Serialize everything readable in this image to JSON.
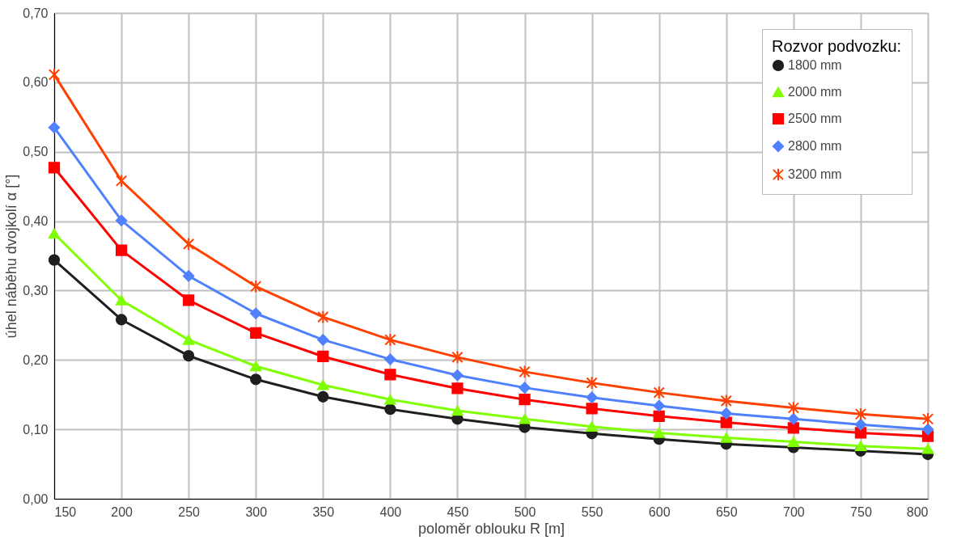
{
  "chart_data": {
    "type": "line",
    "xlabel": "poloměr oblouku R [m]",
    "ylabel": "úhel náběhu dvojkolí α [°]",
    "legend_title": "Rozvor podvozku:",
    "legend": "top right",
    "grid": true,
    "line_style": "solid",
    "x": [
      150,
      200,
      250,
      300,
      350,
      400,
      450,
      500,
      550,
      600,
      650,
      700,
      750,
      800
    ],
    "xlim": [
      150,
      800
    ],
    "xticks": [
      150,
      200,
      250,
      300,
      350,
      400,
      450,
      500,
      550,
      600,
      650,
      700,
      750,
      800
    ],
    "ylim": [
      0,
      0.7
    ],
    "yticks": [
      {
        "value": 0,
        "label": "0,00"
      },
      {
        "value": 0.1,
        "label": "0,10"
      },
      {
        "value": 0.2,
        "label": "0,20"
      },
      {
        "value": 0.3,
        "label": "0,30"
      },
      {
        "value": 0.4,
        "label": "0,40"
      },
      {
        "value": 0.5,
        "label": "0,50"
      },
      {
        "value": 0.6,
        "label": "0,60"
      },
      {
        "value": 0.7,
        "label": "0,70"
      }
    ],
    "series": [
      {
        "name": "1800 mm",
        "color": "#1f1f1f",
        "marker": "circle",
        "values": [
          0.344,
          0.258,
          0.206,
          0.172,
          0.147,
          0.129,
          0.115,
          0.103,
          0.094,
          0.086,
          0.079,
          0.074,
          0.069,
          0.064
        ]
      },
      {
        "name": "2000 mm",
        "color": "#80ff00",
        "marker": "triangle",
        "values": [
          0.382,
          0.286,
          0.229,
          0.191,
          0.164,
          0.143,
          0.127,
          0.115,
          0.104,
          0.095,
          0.088,
          0.082,
          0.076,
          0.072
        ]
      },
      {
        "name": "2500 mm",
        "color": "#ff0000",
        "marker": "square",
        "values": [
          0.477,
          0.358,
          0.286,
          0.239,
          0.205,
          0.179,
          0.159,
          0.143,
          0.13,
          0.119,
          0.11,
          0.102,
          0.095,
          0.09
        ]
      },
      {
        "name": "2800 mm",
        "color": "#4f81ff",
        "marker": "diamond",
        "values": [
          0.535,
          0.401,
          0.321,
          0.267,
          0.229,
          0.201,
          0.178,
          0.16,
          0.146,
          0.134,
          0.123,
          0.115,
          0.107,
          0.1
        ]
      },
      {
        "name": "3200 mm",
        "color": "#ff4000",
        "marker": "cross",
        "values": [
          0.611,
          0.458,
          0.367,
          0.306,
          0.262,
          0.229,
          0.204,
          0.183,
          0.167,
          0.153,
          0.141,
          0.131,
          0.122,
          0.115
        ]
      }
    ]
  }
}
